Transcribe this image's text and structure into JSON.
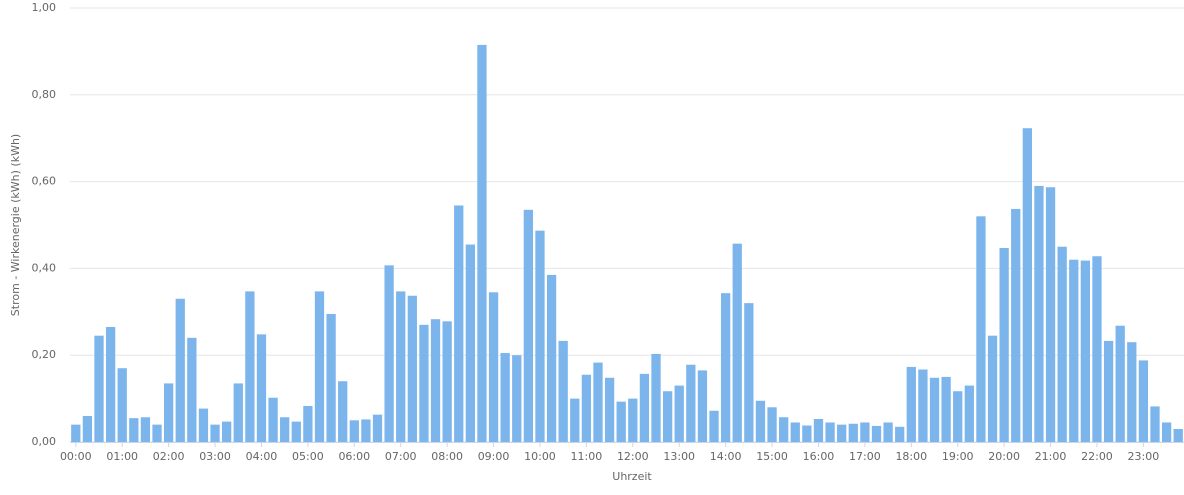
{
  "chart_data": {
    "type": "bar",
    "x_label": "Uhrzeit",
    "y_label": "Strom - Wirkenergie (kWh) (kWh)",
    "categories": [
      "00:00",
      null,
      null,
      null,
      "01:00",
      null,
      null,
      null,
      "02:00",
      null,
      null,
      null,
      "03:00",
      null,
      null,
      null,
      "04:00",
      null,
      null,
      null,
      "05:00",
      null,
      null,
      null,
      "06:00",
      null,
      null,
      null,
      "07:00",
      null,
      null,
      null,
      "08:00",
      null,
      null,
      null,
      "09:00",
      null,
      null,
      null,
      "10:00",
      null,
      null,
      null,
      "11:00",
      null,
      null,
      null,
      "12:00",
      null,
      null,
      null,
      "13:00",
      null,
      null,
      null,
      "14:00",
      null,
      null,
      null,
      "15:00",
      null,
      null,
      null,
      "16:00",
      null,
      null,
      null,
      "17:00",
      null,
      null,
      null,
      "18:00",
      null,
      null,
      null,
      "19:00",
      null,
      null,
      null,
      "20:00",
      null,
      null,
      null,
      "21:00",
      null,
      null,
      null,
      "22:00",
      null,
      null,
      null,
      "23:00",
      null,
      null,
      null
    ],
    "values": [
      0.04,
      0.06,
      0.245,
      0.265,
      0.17,
      0.055,
      0.057,
      0.04,
      0.135,
      0.33,
      0.24,
      0.077,
      0.04,
      0.047,
      0.135,
      0.347,
      0.248,
      0.102,
      0.057,
      0.047,
      0.083,
      0.347,
      0.295,
      0.14,
      0.05,
      0.052,
      0.063,
      0.407,
      0.347,
      0.337,
      0.27,
      0.283,
      0.278,
      0.545,
      0.455,
      0.915,
      0.345,
      0.205,
      0.2,
      0.535,
      0.487,
      0.385,
      0.233,
      0.1,
      0.155,
      0.183,
      0.148,
      0.093,
      0.1,
      0.157,
      0.203,
      0.117,
      0.13,
      0.178,
      0.165,
      0.072,
      0.343,
      0.457,
      0.32,
      0.095,
      0.08,
      0.057,
      0.045,
      0.038,
      0.053,
      0.045,
      0.04,
      0.042,
      0.045,
      0.037,
      0.045,
      0.035,
      0.173,
      0.167,
      0.148,
      0.15,
      0.117,
      0.13,
      0.52,
      0.245,
      0.447,
      0.537,
      0.723,
      0.59,
      0.587,
      0.45,
      0.42,
      0.418,
      0.428,
      0.233,
      0.268,
      0.23,
      0.188,
      0.082,
      0.045,
      0.03
    ],
    "color": "#7cb5ec",
    "ylim": [
      0,
      1
    ],
    "yticks": [
      {
        "value": 0,
        "label": "0,00"
      },
      {
        "value": 0.2,
        "label": "0,20"
      },
      {
        "value": 0.4,
        "label": "0,40"
      },
      {
        "value": 0.6,
        "label": "0,60"
      },
      {
        "value": 0.8,
        "label": "0,80"
      },
      {
        "value": 1,
        "label": "1,00"
      }
    ],
    "grid": true
  }
}
